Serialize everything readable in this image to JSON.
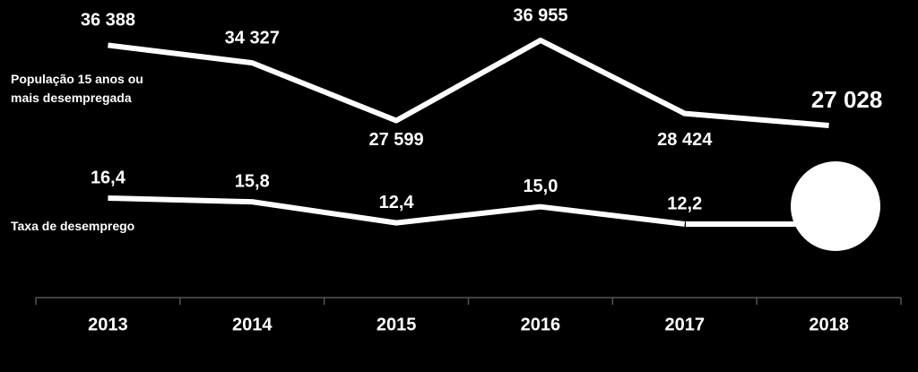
{
  "chart_data": {
    "type": "line",
    "categories": [
      "2013",
      "2014",
      "2015",
      "2016",
      "2017",
      "2018"
    ],
    "series": [
      {
        "name": "População 15 anos ou mais desempregada",
        "color": "#ffffff",
        "values": [
          36388,
          34327,
          27599,
          36955,
          28424,
          27028
        ],
        "value_labels": [
          "36 388",
          "34 327",
          "27 599",
          "36 955",
          "28 424",
          "27 028"
        ]
      },
      {
        "name": "Taxa de desemprego",
        "color": "#ffffff",
        "values": [
          16.4,
          15.8,
          12.4,
          15.0,
          12.2,
          null
        ],
        "value_labels": [
          "16,4",
          "15,8",
          "12,4",
          "15,0",
          "12,2",
          null
        ]
      }
    ]
  }
}
